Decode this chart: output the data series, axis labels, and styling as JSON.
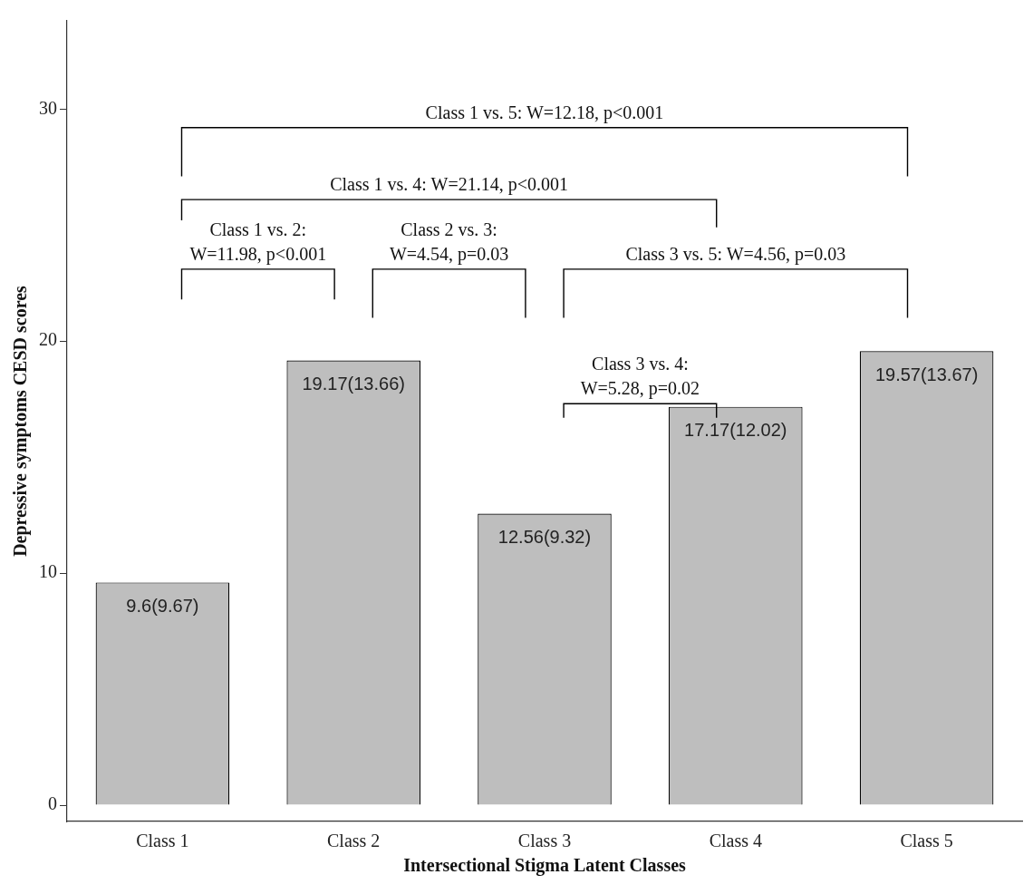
{
  "chart_data": {
    "type": "bar",
    "xlabel": "Intersectional Stigma Latent Classes",
    "ylabel": "Depressive symptoms CESD scores",
    "categories": [
      "Class 1",
      "Class 2",
      "Class 3",
      "Class 4",
      "Class 5"
    ],
    "values": [
      9.6,
      19.17,
      12.56,
      17.17,
      19.57
    ],
    "value_labels": [
      "9.6(9.67)",
      "19.17(13.66)",
      "12.56(9.32)",
      "17.17(12.02)",
      "19.57(13.67)"
    ],
    "color": "#bebebe",
    "ylim": [
      -0.7,
      33.8
    ],
    "yticks": [
      0,
      10,
      20,
      30
    ],
    "grid": false,
    "legend": false,
    "annotations": [
      "Class 1 vs. 5: W=12.18, p<0.001",
      "Class 1 vs. 4: W=21.14, p<0.001",
      "Class 1 vs. 2: W=11.98, p<0.001",
      "Class 2 vs. 3: W=4.54, p=0.03",
      "Class 3 vs. 5: W=4.56, p=0.03",
      "Class 3 vs. 4: W=5.28, p=0.02"
    ]
  }
}
